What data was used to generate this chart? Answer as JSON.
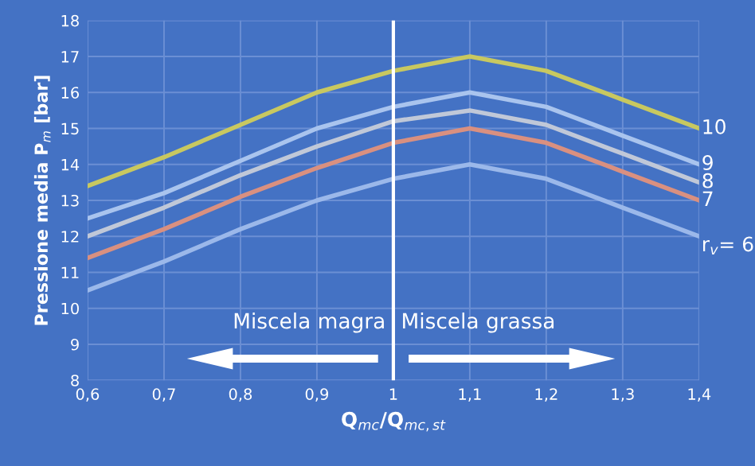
{
  "chart_data": {
    "type": "line",
    "xlabel": "Q$_{mc}$/Q$_{mc,st}$",
    "ylabel": "Pressione media P$_{m}$ [bar]",
    "x": [
      0.6,
      0.7,
      0.8,
      0.9,
      1.0,
      1.1,
      1.2,
      1.3,
      1.4
    ],
    "series": [
      {
        "name": "10",
        "color": "#c8c860",
        "values": [
          13.4,
          14.2,
          15.1,
          16.0,
          16.6,
          17.0,
          16.6,
          15.8,
          15.0
        ]
      },
      {
        "name": "9",
        "color": "#a9c4ee",
        "values": [
          12.5,
          13.2,
          14.1,
          15.0,
          15.6,
          16.0,
          15.6,
          14.8,
          14.0
        ]
      },
      {
        "name": "8",
        "color": "#c0c8d8",
        "values": [
          12.0,
          12.8,
          13.7,
          14.5,
          15.2,
          15.5,
          15.1,
          14.3,
          13.5
        ]
      },
      {
        "name": "7",
        "color": "#d99080",
        "values": [
          11.4,
          12.2,
          13.1,
          13.9,
          14.6,
          15.0,
          14.6,
          13.8,
          13.0
        ]
      },
      {
        "name": "r$_{v}$= 6",
        "color": "#9bb8ea",
        "values": [
          10.5,
          11.3,
          12.2,
          13.0,
          13.6,
          14.0,
          13.6,
          12.8,
          12.0
        ]
      }
    ],
    "xlim": [
      0.6,
      1.4
    ],
    "ylim": [
      8,
      18
    ],
    "xticks": [
      {
        "value": 0.6,
        "label": "0,6"
      },
      {
        "value": 0.7,
        "label": "0,7"
      },
      {
        "value": 0.8,
        "label": "0,8"
      },
      {
        "value": 0.9,
        "label": "0,9"
      },
      1,
      {
        "value": 1.1,
        "label": "1,1"
      },
      {
        "value": 1.2,
        "label": "1,2"
      },
      {
        "value": 1.3,
        "label": "1,3"
      },
      {
        "value": 1.4,
        "label": "1,4"
      }
    ],
    "yticks": [
      8,
      9,
      10,
      11,
      12,
      13,
      14,
      15,
      16,
      17,
      18
    ],
    "ref_lines": [
      {
        "axis": "x",
        "value": 1,
        "color": "#ffffff"
      }
    ],
    "annotations": [
      "Miscela magra",
      "Miscela grassa"
    ],
    "grid": true,
    "legend": false,
    "marker": "none",
    "line_style": "solid"
  }
}
